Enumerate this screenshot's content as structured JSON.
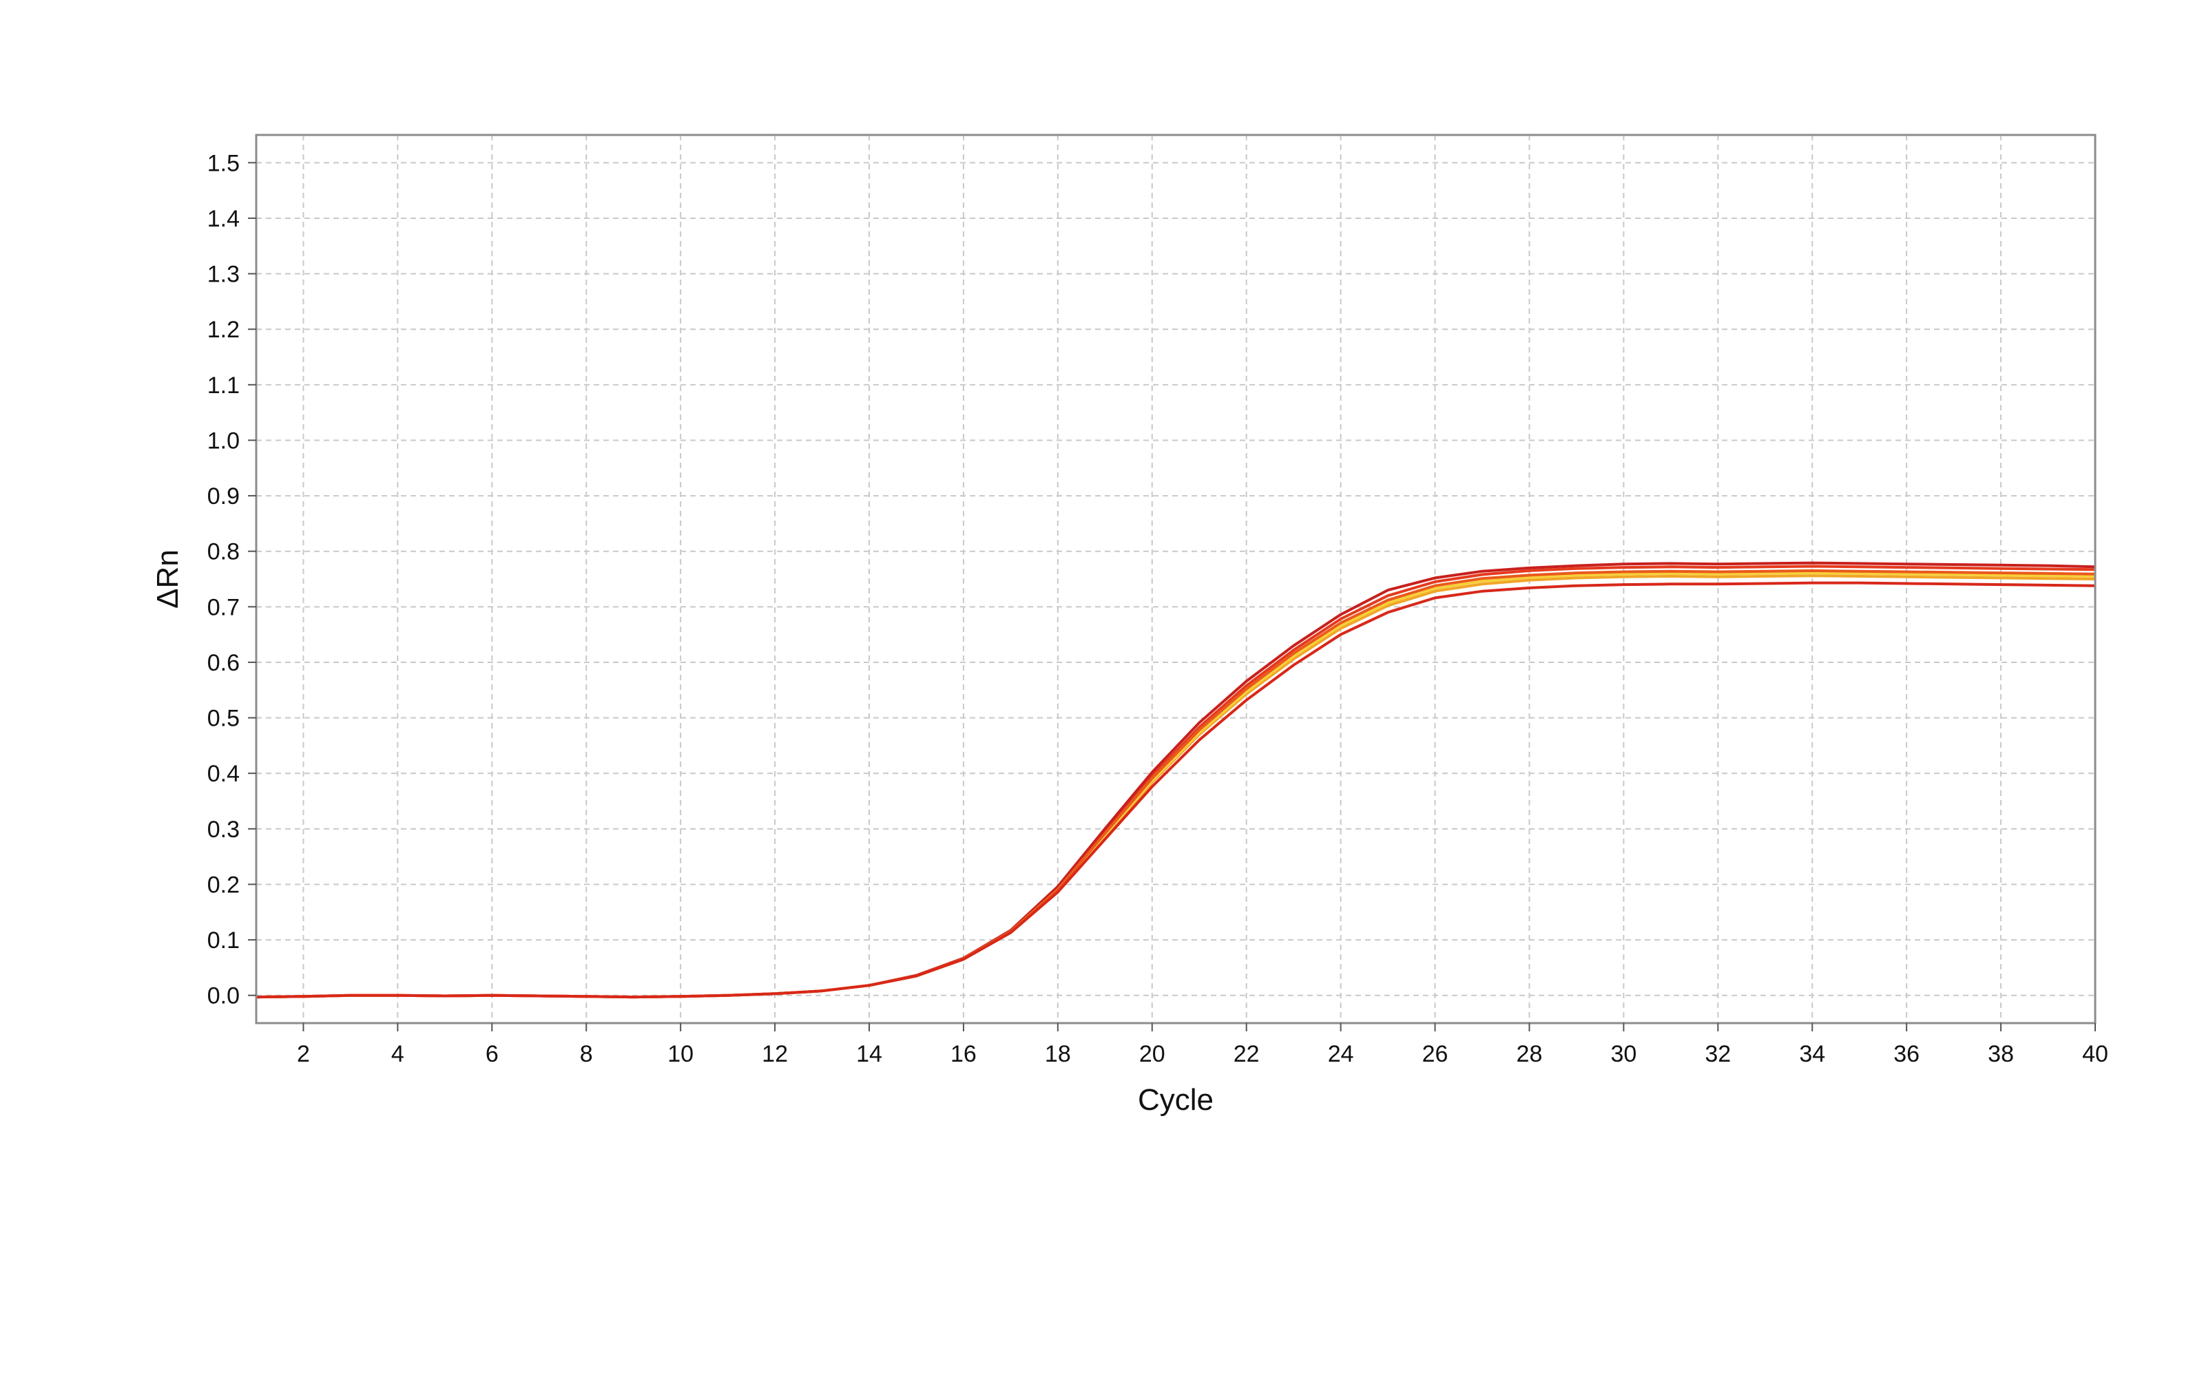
{
  "chart_data": {
    "type": "line",
    "title": "",
    "xlabel": "Cycle",
    "ylabel": "ΔRn",
    "xlim": [
      1,
      40
    ],
    "ylim": [
      -0.05,
      1.55
    ],
    "x_ticks": [
      2,
      4,
      6,
      8,
      10,
      12,
      14,
      16,
      18,
      20,
      22,
      24,
      26,
      28,
      30,
      32,
      34,
      36,
      38,
      40
    ],
    "y_ticks": [
      0.0,
      0.1,
      0.2,
      0.3,
      0.4,
      0.5,
      0.6,
      0.7,
      0.8,
      0.9,
      1.0,
      1.1,
      1.2,
      1.3,
      1.4,
      1.5
    ],
    "y_tick_labels": [
      "0.0",
      "0.1",
      "0.2",
      "0.3",
      "0.4",
      "0.5",
      "0.6",
      "0.7",
      "0.8",
      "0.9",
      "1.0",
      "1.1",
      "1.2",
      "1.3",
      "1.4",
      "1.5"
    ],
    "grid": true,
    "legend": "none",
    "x": [
      1,
      2,
      3,
      4,
      5,
      6,
      7,
      8,
      9,
      10,
      11,
      12,
      13,
      14,
      15,
      16,
      17,
      18,
      19,
      20,
      21,
      22,
      23,
      24,
      25,
      26,
      27,
      28,
      29,
      30,
      31,
      32,
      33,
      34,
      35,
      36,
      37,
      38,
      39,
      40
    ],
    "series": [
      {
        "color": "#e53a1e",
        "values": [
          -0.003,
          -0.002,
          0,
          0,
          -0.001,
          0,
          -0.001,
          -0.002,
          -0.003,
          -0.002,
          0,
          0.003,
          0.008,
          0.018,
          0.036,
          0.066,
          0.116,
          0.193,
          0.295,
          0.395,
          0.483,
          0.558,
          0.622,
          0.678,
          0.72,
          0.745,
          0.758,
          0.765,
          0.769,
          0.771,
          0.772,
          0.771,
          0.772,
          0.773,
          0.772,
          0.771,
          0.77,
          0.769,
          0.768,
          0.767
        ]
      },
      {
        "color": "#c8201c",
        "values": [
          -0.003,
          -0.002,
          0,
          0,
          -0.001,
          0,
          -0.001,
          -0.002,
          -0.003,
          -0.002,
          0,
          0.003,
          0.008,
          0.018,
          0.036,
          0.067,
          0.117,
          0.196,
          0.3,
          0.402,
          0.491,
          0.566,
          0.63,
          0.686,
          0.73,
          0.752,
          0.764,
          0.77,
          0.774,
          0.777,
          0.778,
          0.777,
          0.778,
          0.779,
          0.778,
          0.777,
          0.776,
          0.775,
          0.774,
          0.772
        ]
      },
      {
        "color": "#f0a628",
        "values": [
          -0.003,
          -0.002,
          0,
          0,
          -0.001,
          0,
          -0.001,
          -0.002,
          -0.003,
          -0.002,
          0,
          0.003,
          0.008,
          0.018,
          0.035,
          0.065,
          0.114,
          0.189,
          0.287,
          0.384,
          0.47,
          0.543,
          0.606,
          0.661,
          0.702,
          0.728,
          0.741,
          0.748,
          0.752,
          0.754,
          0.755,
          0.754,
          0.755,
          0.756,
          0.755,
          0.754,
          0.753,
          0.752,
          0.751,
          0.75
        ]
      },
      {
        "color": "#f7cf3a",
        "values": [
          -0.003,
          -0.002,
          0,
          0,
          -0.001,
          0,
          -0.001,
          -0.002,
          -0.003,
          -0.002,
          0,
          0.003,
          0.008,
          0.018,
          0.035,
          0.065,
          0.114,
          0.19,
          0.289,
          0.387,
          0.473,
          0.547,
          0.611,
          0.666,
          0.707,
          0.733,
          0.746,
          0.753,
          0.757,
          0.759,
          0.76,
          0.759,
          0.76,
          0.761,
          0.76,
          0.759,
          0.758,
          0.757,
          0.756,
          0.755
        ]
      },
      {
        "color": "#ea5a1c",
        "values": [
          -0.003,
          -0.002,
          0,
          0,
          -0.001,
          0,
          -0.001,
          -0.002,
          -0.003,
          -0.002,
          0,
          0.003,
          0.008,
          0.018,
          0.035,
          0.066,
          0.115,
          0.191,
          0.292,
          0.391,
          0.478,
          0.552,
          0.616,
          0.671,
          0.712,
          0.738,
          0.751,
          0.757,
          0.761,
          0.763,
          0.764,
          0.763,
          0.764,
          0.765,
          0.764,
          0.763,
          0.762,
          0.761,
          0.76,
          0.759
        ]
      },
      {
        "color": "#d8281a",
        "values": [
          -0.003,
          -0.002,
          0,
          0,
          -0.001,
          0,
          -0.001,
          -0.002,
          -0.003,
          -0.002,
          0,
          0.003,
          0.008,
          0.018,
          0.035,
          0.065,
          0.113,
          0.186,
          0.281,
          0.376,
          0.46,
          0.532,
          0.595,
          0.65,
          0.69,
          0.716,
          0.728,
          0.734,
          0.738,
          0.74,
          0.741,
          0.741,
          0.742,
          0.743,
          0.743,
          0.742,
          0.741,
          0.74,
          0.739,
          0.738
        ]
      }
    ]
  }
}
